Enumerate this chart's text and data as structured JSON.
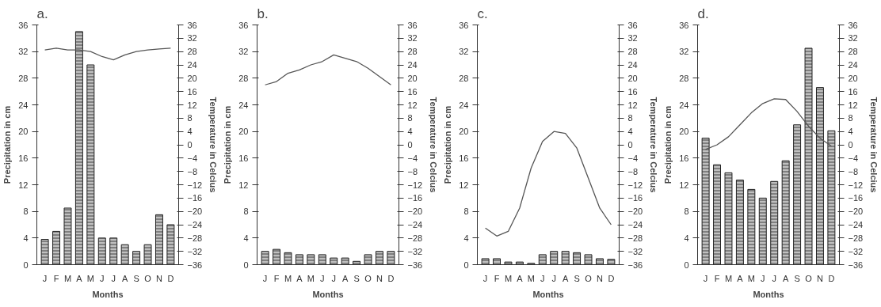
{
  "chart_data": [
    {
      "type": "bar",
      "title": "a.",
      "xlabel": "Months",
      "ylabel": "Precipitation in cm",
      "y2label": "Temperature in Celcius",
      "categories": [
        "J",
        "F",
        "M",
        "A",
        "M",
        "J",
        "J",
        "A",
        "S",
        "O",
        "N",
        "D"
      ],
      "series": [
        {
          "color": "#808080",
          "values": [
            3.8,
            5,
            8.5,
            35,
            30,
            4,
            4,
            3,
            2,
            3,
            7.5,
            6
          ]
        },
        {
          "type": "line",
          "axis": "y2",
          "color": "#555555",
          "values": [
            28.5,
            29,
            28.5,
            28.5,
            28,
            26.5,
            25.5,
            27,
            28,
            28.5,
            28.8,
            29
          ]
        }
      ],
      "ylim": [
        0,
        36
      ],
      "yticks": [
        0,
        4,
        8,
        12,
        16,
        20,
        24,
        28,
        32,
        36
      ],
      "y2lim": [
        -36,
        36
      ],
      "y2ticks": [
        -36,
        -32,
        -28,
        -24,
        -20,
        -16,
        -12,
        -8,
        -4,
        0,
        4,
        8,
        12,
        16,
        20,
        24,
        28,
        32,
        36
      ],
      "grid": false
    },
    {
      "type": "bar",
      "title": "b.",
      "xlabel": "Months",
      "ylabel": "Precipitation in cm",
      "y2label": "Temperature in Celcius",
      "categories": [
        "J",
        "F",
        "M",
        "A",
        "M",
        "J",
        "J",
        "A",
        "S",
        "O",
        "N",
        "D"
      ],
      "series": [
        {
          "color": "#808080",
          "values": [
            2,
            2.3,
            1.8,
            1.5,
            1.5,
            1.5,
            1,
            1,
            0.5,
            1.5,
            2,
            2
          ]
        },
        {
          "type": "line",
          "axis": "y2",
          "color": "#555555",
          "values": [
            18,
            19,
            21.5,
            22.5,
            24,
            25,
            27,
            26,
            25,
            23,
            20.5,
            18
          ]
        }
      ],
      "ylim": [
        0,
        36
      ],
      "yticks": [
        0,
        4,
        8,
        12,
        16,
        20,
        24,
        28,
        32,
        36
      ],
      "y2lim": [
        -36,
        36
      ],
      "y2ticks": [
        -36,
        -32,
        -28,
        -24,
        -20,
        -16,
        -12,
        -8,
        -4,
        0,
        4,
        8,
        12,
        16,
        20,
        24,
        28,
        32,
        36
      ],
      "grid": false
    },
    {
      "type": "bar",
      "title": "c.",
      "xlabel": "Months",
      "ylabel": "Precipitation in cm",
      "y2label": "Temperature in Celcius",
      "categories": [
        "J",
        "F",
        "M",
        "A",
        "M",
        "J",
        "J",
        "A",
        "S",
        "O",
        "N",
        "D"
      ],
      "series": [
        {
          "color": "#808080",
          "values": [
            0.9,
            0.9,
            0.4,
            0.4,
            0.2,
            1.5,
            2,
            2,
            1.8,
            1.5,
            0.9,
            0.8
          ]
        },
        {
          "type": "line",
          "axis": "y2",
          "color": "#555555",
          "values": [
            -25,
            -27.4,
            -26,
            -19,
            -7,
            1,
            4,
            3.4,
            -1,
            -10,
            -19,
            -24
          ]
        }
      ],
      "ylim": [
        0,
        36
      ],
      "yticks": [
        0,
        4,
        8,
        12,
        16,
        20,
        24,
        28,
        32,
        36
      ],
      "y2lim": [
        -36,
        36
      ],
      "y2ticks": [
        -36,
        -32,
        -28,
        -24,
        -20,
        -16,
        -12,
        -8,
        -4,
        0,
        4,
        8,
        12,
        16,
        20,
        24,
        28,
        32,
        36
      ],
      "grid": false
    },
    {
      "type": "bar",
      "title": "d.",
      "xlabel": "Months",
      "ylabel": "Precipitation in cm",
      "y2label": "Temperature in Celcius",
      "categories": [
        "J",
        "F",
        "M",
        "A",
        "M",
        "J",
        "J",
        "A",
        "S",
        "O",
        "N",
        "D"
      ],
      "series": [
        {
          "color": "#808080",
          "values": [
            19,
            15,
            13.8,
            12.7,
            11.3,
            10,
            12.5,
            15.6,
            21,
            32.5,
            26.6,
            20.1
          ]
        },
        {
          "type": "line",
          "axis": "y2",
          "color": "#555555",
          "values": [
            -1.4,
            0,
            2.4,
            6,
            9.6,
            12.4,
            13.8,
            13.6,
            10,
            5.6,
            2,
            -0.4
          ]
        }
      ],
      "ylim": [
        0,
        36
      ],
      "yticks": [
        0,
        4,
        8,
        12,
        16,
        20,
        24,
        28,
        32,
        36
      ],
      "y2lim": [
        -36,
        36
      ],
      "y2ticks": [
        -36,
        -32,
        -28,
        -24,
        -20,
        -16,
        -12,
        -8,
        -4,
        0,
        4,
        8,
        12,
        16,
        20,
        24,
        28,
        32,
        36
      ],
      "grid": false
    }
  ]
}
